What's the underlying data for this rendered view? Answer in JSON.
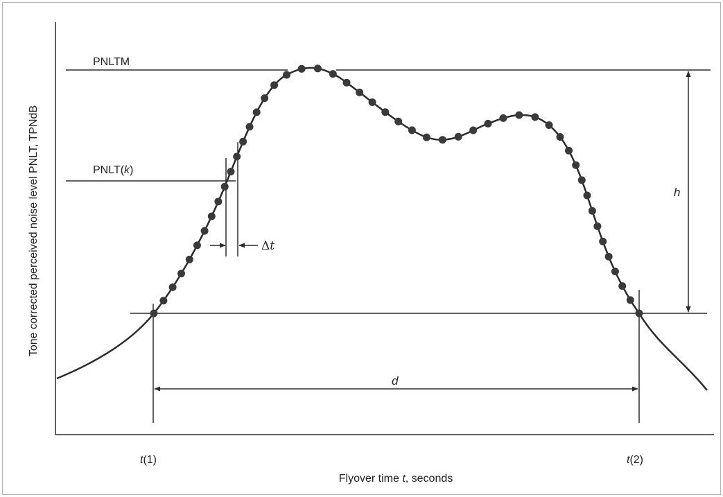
{
  "figure": {
    "labels": {
      "pnltm": "PNLTM",
      "pnltk_prefix": "PNLT(",
      "pnltk_var": "k",
      "pnltk_suffix": ")",
      "delta_symbol": "Δ",
      "delta_var": "t",
      "h": "h",
      "d": "d",
      "t1_var": "t",
      "t1_idx": "(1)",
      "t2_var": "t",
      "t2_idx": "(2)"
    },
    "axes": {
      "y_label": "Tone corrected perceived noise level PNLT, TPNdB",
      "x_label_prefix": "Flyover time ",
      "x_label_var": "t",
      "x_label_suffix": ", seconds"
    },
    "colors": {
      "line": "#2b2b2b",
      "marker": "#3a3a3a",
      "border": "#b5b5b5"
    }
  }
}
